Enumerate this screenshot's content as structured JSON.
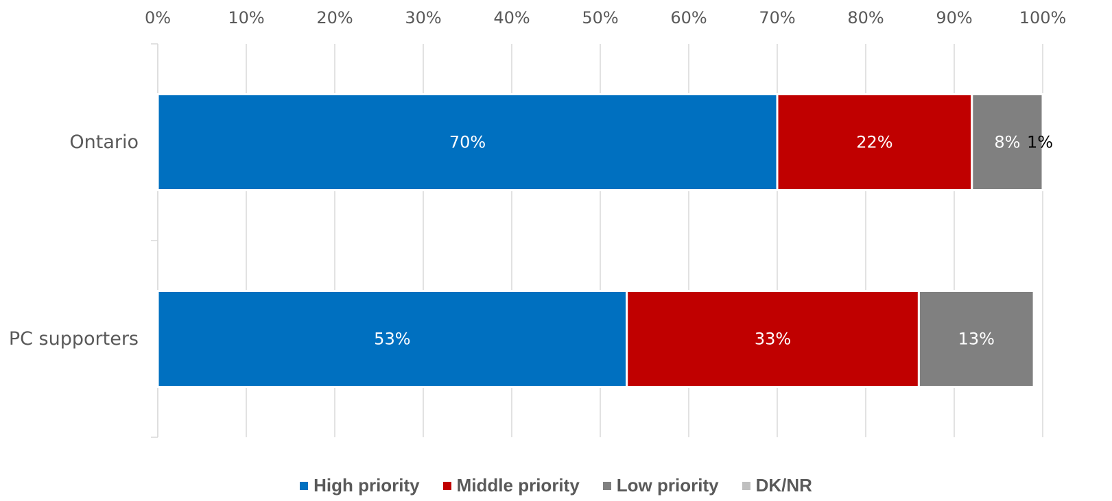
{
  "chart_data": {
    "type": "bar",
    "orientation": "horizontal",
    "stacked": true,
    "categories": [
      "Ontario",
      "PC supporters"
    ],
    "series": [
      {
        "name": "High priority",
        "color": "#0070C0",
        "label_color": "#ffffff",
        "values": [
          70,
          53
        ],
        "labels": [
          "70%",
          "53%"
        ]
      },
      {
        "name": "Middle priority",
        "color": "#C00000",
        "label_color": "#ffffff",
        "values": [
          22,
          33
        ],
        "labels": [
          "22%",
          "33%"
        ]
      },
      {
        "name": "Low priority",
        "color": "#808080",
        "label_color": "#ffffff",
        "values": [
          8,
          13
        ],
        "labels": [
          "8%",
          "13%"
        ]
      },
      {
        "name": "DK/NR",
        "color": "#BFBFBF",
        "label_color": "#000000",
        "values": [
          1,
          0
        ],
        "labels": [
          "1%",
          ""
        ]
      }
    ],
    "x_ticks": [
      "0%",
      "10%",
      "20%",
      "30%",
      "40%",
      "50%",
      "60%",
      "70%",
      "80%",
      "90%",
      "100%"
    ],
    "xlim": [
      0,
      100
    ],
    "x_axis_position": "top",
    "grid": true,
    "legend_position": "bottom"
  }
}
